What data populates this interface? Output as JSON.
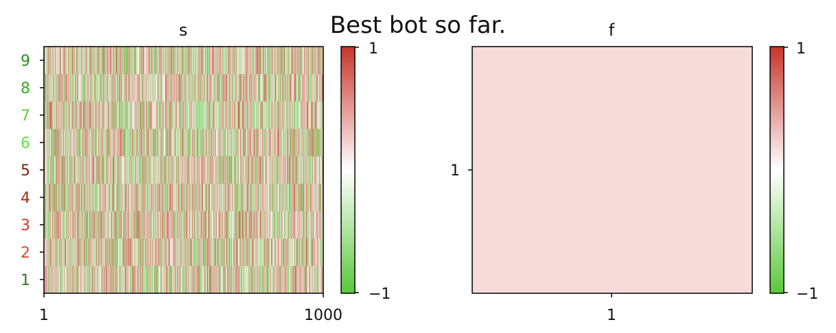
{
  "figure": {
    "title": "Best bot so far."
  },
  "chart_data": [
    {
      "type": "heatmap",
      "title": "s",
      "x_ticks": [
        "1",
        "1000"
      ],
      "x_range": [
        1,
        1000
      ],
      "y_ticks": [
        "1",
        "2",
        "3",
        "4",
        "5",
        "6",
        "7",
        "8",
        "9"
      ],
      "y_tick_colors": [
        "#2a7a1a",
        "#d84a2e",
        "#c93a22",
        "#a32a1a",
        "#7a2412",
        "#66e040",
        "#58d038",
        "#3aa626",
        "#2e8a1e"
      ],
      "rows": 9,
      "cols": 1000,
      "value_range": [
        -1,
        1
      ],
      "colorbar": {
        "ticks": [
          "1",
          "−1"
        ],
        "colors": [
          "#c8352a",
          "#ffffff",
          "#5ac83a"
        ]
      },
      "note_values": "random values in [-1, 1] per cell (pattern not individually readable)"
    },
    {
      "type": "heatmap",
      "title": "f",
      "x_ticks": [
        "1"
      ],
      "y_ticks": [
        "1"
      ],
      "rows": 1,
      "cols": 1,
      "values": [
        [
          0.18
        ]
      ],
      "value_range": [
        -1,
        1
      ],
      "colorbar": {
        "ticks": [
          "1",
          "−1"
        ],
        "colors": [
          "#c8352a",
          "#ffffff",
          "#5ac83a"
        ]
      }
    }
  ]
}
